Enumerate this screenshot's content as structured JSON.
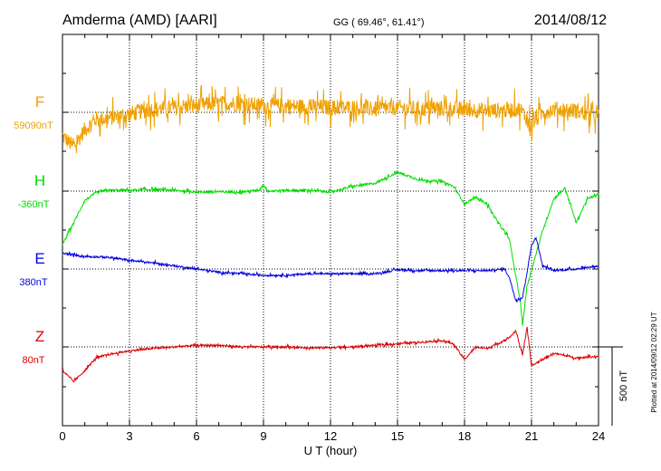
{
  "header": {
    "station": "Amderma (AMD)  [AARI]",
    "coords": "GG ( 69.46°,  61.41°)",
    "date": "2014/08/12"
  },
  "footer_note": "Plotted at 2014/09/12 02:29 UT",
  "chart_data": {
    "type": "line",
    "title": "Amderma (AMD)  [AARI]",
    "xlabel": "U T (hour)",
    "xlim": [
      0,
      24
    ],
    "xticks": [
      "0",
      "3",
      "6",
      "9",
      "12",
      "15",
      "18",
      "21",
      "24"
    ],
    "scale_bar": {
      "label": "500 nT",
      "value_nT": 500
    },
    "units_per_division": 500,
    "series": [
      {
        "name": "F",
        "baseline": "59090nT",
        "color": "#f0a000",
        "noise": 85,
        "points": [
          [
            0,
            -150
          ],
          [
            0.5,
            -220
          ],
          [
            1,
            -110
          ],
          [
            1.5,
            -45
          ],
          [
            2,
            -40
          ],
          [
            3,
            -10
          ],
          [
            4,
            20
          ],
          [
            5,
            30
          ],
          [
            6,
            45
          ],
          [
            7,
            55
          ],
          [
            8,
            55
          ],
          [
            9,
            40
          ],
          [
            10,
            40
          ],
          [
            11,
            35
          ],
          [
            12,
            30
          ],
          [
            13,
            30
          ],
          [
            14,
            20
          ],
          [
            15,
            30
          ],
          [
            16,
            20
          ],
          [
            17,
            25
          ],
          [
            18,
            20
          ],
          [
            19,
            10
          ],
          [
            20,
            15
          ],
          [
            20.5,
            20
          ],
          [
            21,
            -80
          ],
          [
            21.5,
            0
          ],
          [
            22,
            20
          ],
          [
            23,
            10
          ],
          [
            24,
            -30
          ]
        ]
      },
      {
        "name": "H",
        "baseline": "-360nT",
        "color": "#00dd00",
        "noise": 12,
        "points": [
          [
            0,
            -340
          ],
          [
            0.5,
            -200
          ],
          [
            1,
            -60
          ],
          [
            1.5,
            -10
          ],
          [
            2,
            5
          ],
          [
            3,
            5
          ],
          [
            4,
            10
          ],
          [
            5,
            5
          ],
          [
            6,
            -5
          ],
          [
            7,
            -5
          ],
          [
            8,
            -5
          ],
          [
            8.8,
            5
          ],
          [
            9,
            40
          ],
          [
            9.2,
            0
          ],
          [
            10,
            5
          ],
          [
            11,
            5
          ],
          [
            12,
            -5
          ],
          [
            13,
            30
          ],
          [
            14,
            50
          ],
          [
            15,
            120
          ],
          [
            16,
            70
          ],
          [
            17,
            60
          ],
          [
            17.5,
            30
          ],
          [
            18,
            -80
          ],
          [
            18.5,
            -40
          ],
          [
            19,
            -80
          ],
          [
            19.5,
            -200
          ],
          [
            20,
            -300
          ],
          [
            20.5,
            -700
          ],
          [
            20.6,
            -850
          ],
          [
            20.8,
            -600
          ],
          [
            21,
            -500
          ],
          [
            21.5,
            -250
          ],
          [
            22,
            -50
          ],
          [
            22.5,
            20
          ],
          [
            23,
            -200
          ],
          [
            23.5,
            -50
          ],
          [
            24,
            -20
          ]
        ]
      },
      {
        "name": "E",
        "baseline": "380nT",
        "color": "#0000dd",
        "noise": 10,
        "points": [
          [
            0,
            100
          ],
          [
            1,
            80
          ],
          [
            2,
            75
          ],
          [
            3,
            55
          ],
          [
            4,
            40
          ],
          [
            5,
            20
          ],
          [
            6,
            0
          ],
          [
            7,
            -20
          ],
          [
            8,
            -30
          ],
          [
            9,
            -40
          ],
          [
            10,
            -40
          ],
          [
            11,
            -30
          ],
          [
            12,
            -30
          ],
          [
            13,
            -30
          ],
          [
            14,
            -30
          ],
          [
            15,
            -5
          ],
          [
            16,
            -10
          ],
          [
            17,
            -10
          ],
          [
            18,
            -10
          ],
          [
            19,
            -10
          ],
          [
            19.8,
            0
          ],
          [
            20,
            -50
          ],
          [
            20.3,
            -200
          ],
          [
            20.6,
            -180
          ],
          [
            20.8,
            -20
          ],
          [
            21,
            150
          ],
          [
            21.2,
            200
          ],
          [
            21.5,
            20
          ],
          [
            22,
            -10
          ],
          [
            23,
            0
          ],
          [
            24,
            20
          ]
        ]
      },
      {
        "name": "Z",
        "baseline": "80nT",
        "color": "#dd0000",
        "noise": 10,
        "points": [
          [
            0,
            -150
          ],
          [
            0.5,
            -220
          ],
          [
            1,
            -150
          ],
          [
            1.5,
            -70
          ],
          [
            2,
            -50
          ],
          [
            3,
            -25
          ],
          [
            4,
            -10
          ],
          [
            5,
            0
          ],
          [
            6,
            10
          ],
          [
            7,
            10
          ],
          [
            8,
            0
          ],
          [
            9,
            0
          ],
          [
            10,
            0
          ],
          [
            11,
            -5
          ],
          [
            12,
            -5
          ],
          [
            13,
            0
          ],
          [
            14,
            10
          ],
          [
            15,
            20
          ],
          [
            16,
            30
          ],
          [
            17,
            40
          ],
          [
            17.5,
            20
          ],
          [
            18,
            -80
          ],
          [
            18.5,
            0
          ],
          [
            19,
            -10
          ],
          [
            19.5,
            20
          ],
          [
            20,
            60
          ],
          [
            20.3,
            100
          ],
          [
            20.6,
            -50
          ],
          [
            20.8,
            120
          ],
          [
            21,
            -120
          ],
          [
            21.5,
            -80
          ],
          [
            22,
            -40
          ],
          [
            23,
            -70
          ],
          [
            24,
            -60
          ]
        ]
      }
    ]
  }
}
